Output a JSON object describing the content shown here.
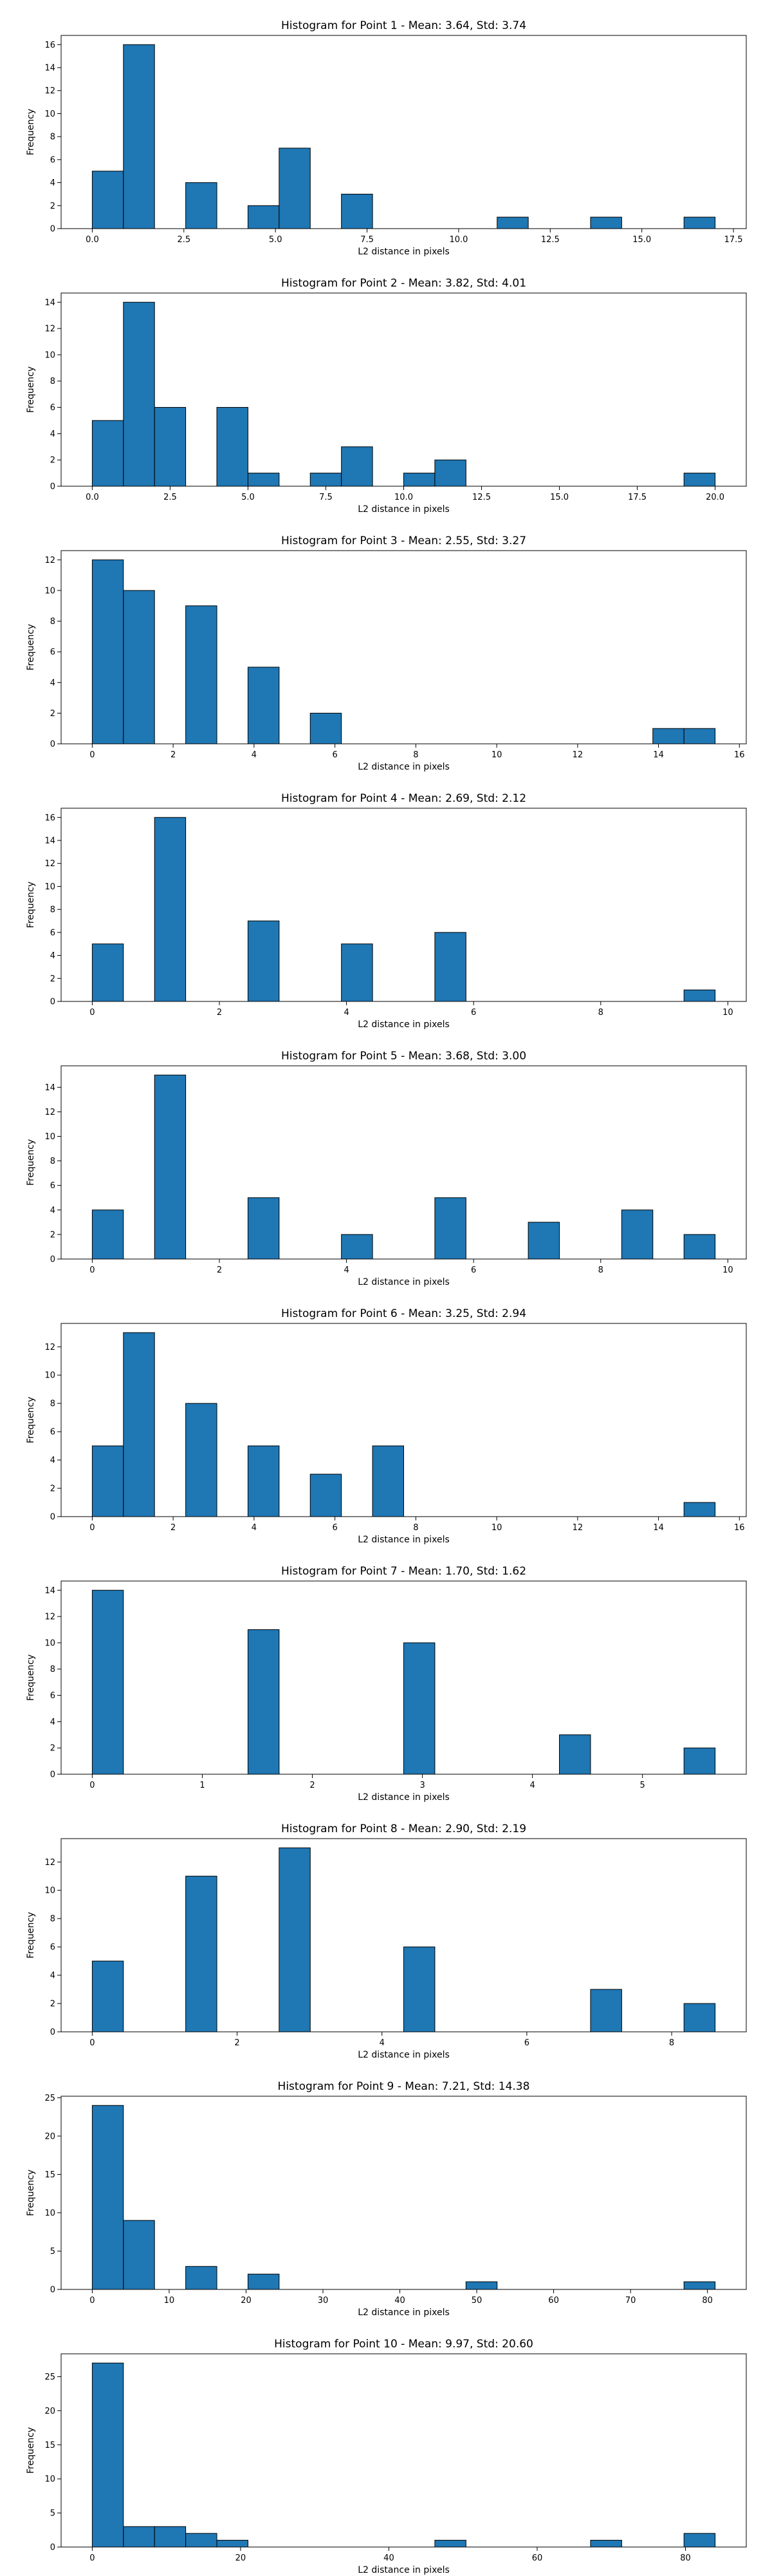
{
  "chart_data": [
    {
      "type": "bar",
      "title": "Histogram for Point 1 - Mean: 3.64, Std: 3.74",
      "xlabel": "L2 distance in pixels",
      "ylabel": "Frequency",
      "xlim": [
        -0.85,
        17.85
      ],
      "ylim": [
        0,
        16.8
      ],
      "xticks": [
        0.0,
        2.5,
        5.0,
        7.5,
        10.0,
        12.5,
        15.0,
        17.5
      ],
      "xtick_labels": [
        "0.0",
        "2.5",
        "5.0",
        "7.5",
        "10.0",
        "12.5",
        "15.0",
        "17.5"
      ],
      "yticks": [
        0,
        2,
        4,
        6,
        8,
        10,
        12,
        14,
        16
      ],
      "bins": [
        [
          0.0,
          0.85,
          5
        ],
        [
          0.85,
          1.7,
          16
        ],
        [
          2.55,
          3.4,
          4
        ],
        [
          4.25,
          5.1,
          2
        ],
        [
          5.1,
          5.95,
          7
        ],
        [
          6.8,
          7.65,
          3
        ],
        [
          11.05,
          11.9,
          1
        ],
        [
          13.6,
          14.45,
          1
        ],
        [
          16.15,
          17.0,
          1
        ]
      ],
      "color": "#1f77b4"
    },
    {
      "type": "bar",
      "title": "Histogram for Point 2 - Mean: 3.82, Std: 4.01",
      "xlabel": "L2 distance in pixels",
      "ylabel": "Frequency",
      "xlim": [
        -1.0,
        21.0
      ],
      "ylim": [
        0,
        14.7
      ],
      "xticks": [
        0.0,
        2.5,
        5.0,
        7.5,
        10.0,
        12.5,
        15.0,
        17.5,
        20.0
      ],
      "xtick_labels": [
        "0.0",
        "2.5",
        "5.0",
        "7.5",
        "10.0",
        "12.5",
        "15.0",
        "17.5",
        "20.0"
      ],
      "yticks": [
        0,
        2,
        4,
        6,
        8,
        10,
        12,
        14
      ],
      "bins": [
        [
          0,
          1,
          5
        ],
        [
          1,
          2,
          14
        ],
        [
          2,
          3,
          6
        ],
        [
          4,
          5,
          6
        ],
        [
          5,
          6,
          1
        ],
        [
          7,
          8,
          1
        ],
        [
          8,
          9,
          3
        ],
        [
          10,
          11,
          1
        ],
        [
          11,
          12,
          2
        ],
        [
          19,
          20,
          1
        ]
      ],
      "color": "#1f77b4"
    },
    {
      "type": "bar",
      "title": "Histogram for Point 3 - Mean: 2.55, Std: 3.27",
      "xlabel": "L2 distance in pixels",
      "ylabel": "Frequency",
      "xlim": [
        -0.77,
        16.17
      ],
      "ylim": [
        0,
        12.6
      ],
      "xticks": [
        0,
        2,
        4,
        6,
        8,
        10,
        12,
        14,
        16
      ],
      "xtick_labels": [
        "0",
        "2",
        "4",
        "6",
        "8",
        "10",
        "12",
        "14",
        "16"
      ],
      "yticks": [
        0,
        2,
        4,
        6,
        8,
        10,
        12
      ],
      "bins": [
        [
          0,
          0.77,
          12
        ],
        [
          0.77,
          1.54,
          10
        ],
        [
          2.31,
          3.08,
          9
        ],
        [
          3.85,
          4.62,
          5
        ],
        [
          5.39,
          6.16,
          2
        ],
        [
          13.86,
          14.63,
          1
        ],
        [
          14.63,
          15.4,
          1
        ]
      ],
      "color": "#1f77b4"
    },
    {
      "type": "bar",
      "title": "Histogram for Point 4 - Mean: 2.69, Std: 2.12",
      "xlabel": "L2 distance in pixels",
      "ylabel": "Frequency",
      "xlim": [
        -0.49,
        10.29
      ],
      "ylim": [
        0,
        16.8
      ],
      "xticks": [
        0,
        2,
        4,
        6,
        8,
        10
      ],
      "xtick_labels": [
        "0",
        "2",
        "4",
        "6",
        "8",
        "10"
      ],
      "yticks": [
        0,
        2,
        4,
        6,
        8,
        10,
        12,
        14,
        16
      ],
      "bins": [
        [
          0,
          0.49,
          5
        ],
        [
          0.98,
          1.47,
          16
        ],
        [
          2.45,
          2.94,
          7
        ],
        [
          3.92,
          4.41,
          5
        ],
        [
          5.39,
          5.88,
          6
        ],
        [
          9.31,
          9.8,
          1
        ]
      ],
      "color": "#1f77b4"
    },
    {
      "type": "bar",
      "title": "Histogram for Point 5 - Mean: 3.68, Std: 3.00",
      "xlabel": "L2 distance in pixels",
      "ylabel": "Frequency",
      "xlim": [
        -0.49,
        10.29
      ],
      "ylim": [
        0,
        15.75
      ],
      "xticks": [
        0,
        2,
        4,
        6,
        8,
        10
      ],
      "xtick_labels": [
        "0",
        "2",
        "4",
        "6",
        "8",
        "10"
      ],
      "yticks": [
        0,
        2,
        4,
        6,
        8,
        10,
        12,
        14
      ],
      "bins": [
        [
          0,
          0.49,
          4
        ],
        [
          0.98,
          1.47,
          15
        ],
        [
          2.45,
          2.94,
          5
        ],
        [
          3.92,
          4.41,
          2
        ],
        [
          5.39,
          5.88,
          5
        ],
        [
          6.86,
          7.35,
          3
        ],
        [
          8.33,
          8.82,
          4
        ],
        [
          9.31,
          9.8,
          2
        ]
      ],
      "color": "#1f77b4"
    },
    {
      "type": "bar",
      "title": "Histogram for Point 6 - Mean: 3.25, Std: 2.94",
      "xlabel": "L2 distance in pixels",
      "ylabel": "Frequency",
      "xlim": [
        -0.77,
        16.17
      ],
      "ylim": [
        0,
        13.65
      ],
      "xticks": [
        0,
        2,
        4,
        6,
        8,
        10,
        12,
        14,
        16
      ],
      "xtick_labels": [
        "0",
        "2",
        "4",
        "6",
        "8",
        "10",
        "12",
        "14",
        "16"
      ],
      "yticks": [
        0,
        2,
        4,
        6,
        8,
        10,
        12
      ],
      "bins": [
        [
          0,
          0.77,
          5
        ],
        [
          0.77,
          1.54,
          13
        ],
        [
          2.31,
          3.08,
          8
        ],
        [
          3.85,
          4.62,
          5
        ],
        [
          5.39,
          6.16,
          3
        ],
        [
          6.93,
          7.7,
          5
        ],
        [
          14.63,
          15.4,
          1
        ]
      ],
      "color": "#1f77b4"
    },
    {
      "type": "bar",
      "title": "Histogram for Point 7 - Mean: 1.70, Std: 1.62",
      "xlabel": "L2 distance in pixels",
      "ylabel": "Frequency",
      "xlim": [
        -0.283,
        5.943
      ],
      "ylim": [
        0,
        14.7
      ],
      "xticks": [
        0,
        1,
        2,
        3,
        4,
        5
      ],
      "xtick_labels": [
        "0",
        "1",
        "2",
        "3",
        "4",
        "5"
      ],
      "yticks": [
        0,
        2,
        4,
        6,
        8,
        10,
        12,
        14
      ],
      "bins": [
        [
          0,
          0.283,
          14
        ],
        [
          1.415,
          1.698,
          11
        ],
        [
          2.83,
          3.113,
          10
        ],
        [
          4.245,
          4.528,
          3
        ],
        [
          5.377,
          5.66,
          2
        ]
      ],
      "color": "#1f77b4"
    },
    {
      "type": "bar",
      "title": "Histogram for Point 8 - Mean: 2.90, Std: 2.19",
      "xlabel": "L2 distance in pixels",
      "ylabel": "Frequency",
      "xlim": [
        -0.43,
        9.03
      ],
      "ylim": [
        0,
        13.65
      ],
      "xticks": [
        0,
        2,
        4,
        6,
        8
      ],
      "xtick_labels": [
        "0",
        "2",
        "4",
        "6",
        "8"
      ],
      "yticks": [
        0,
        2,
        4,
        6,
        8,
        10,
        12
      ],
      "bins": [
        [
          0,
          0.43,
          5
        ],
        [
          1.29,
          1.72,
          11
        ],
        [
          2.58,
          3.01,
          13
        ],
        [
          4.3,
          4.73,
          6
        ],
        [
          6.88,
          7.31,
          3
        ],
        [
          8.17,
          8.6,
          2
        ]
      ],
      "color": "#1f77b4"
    },
    {
      "type": "bar",
      "title": "Histogram for Point 9 - Mean: 7.21, Std: 14.38",
      "xlabel": "L2 distance in pixels",
      "ylabel": "Frequency",
      "xlim": [
        -4.05,
        85.05
      ],
      "ylim": [
        0,
        25.2
      ],
      "xticks": [
        0,
        10,
        20,
        30,
        40,
        50,
        60,
        70,
        80
      ],
      "xtick_labels": [
        "0",
        "10",
        "20",
        "30",
        "40",
        "50",
        "60",
        "70",
        "80"
      ],
      "yticks": [
        0,
        5,
        10,
        15,
        20,
        25
      ],
      "bins": [
        [
          0,
          4.05,
          24
        ],
        [
          4.05,
          8.1,
          9
        ],
        [
          12.15,
          16.2,
          3
        ],
        [
          20.25,
          24.3,
          2
        ],
        [
          48.6,
          52.65,
          1
        ],
        [
          76.95,
          81.0,
          1
        ]
      ],
      "color": "#1f77b4"
    },
    {
      "type": "bar",
      "title": "Histogram for Point 10 - Mean: 9.97, Std: 20.60",
      "xlabel": "L2 distance in pixels",
      "ylabel": "Frequency",
      "xlim": [
        -4.2,
        88.2
      ],
      "ylim": [
        0,
        28.35
      ],
      "xticks": [
        0,
        20,
        40,
        60,
        80
      ],
      "xtick_labels": [
        "0",
        "20",
        "40",
        "60",
        "80"
      ],
      "yticks": [
        0,
        5,
        10,
        15,
        20,
        25
      ],
      "bins": [
        [
          0,
          4.2,
          27
        ],
        [
          4.2,
          8.4,
          3
        ],
        [
          8.4,
          12.6,
          3
        ],
        [
          12.6,
          16.8,
          2
        ],
        [
          16.8,
          21.0,
          1
        ],
        [
          46.2,
          50.4,
          1
        ],
        [
          67.2,
          71.4,
          1
        ],
        [
          79.8,
          84.0,
          2
        ]
      ],
      "color": "#1f77b4"
    }
  ]
}
